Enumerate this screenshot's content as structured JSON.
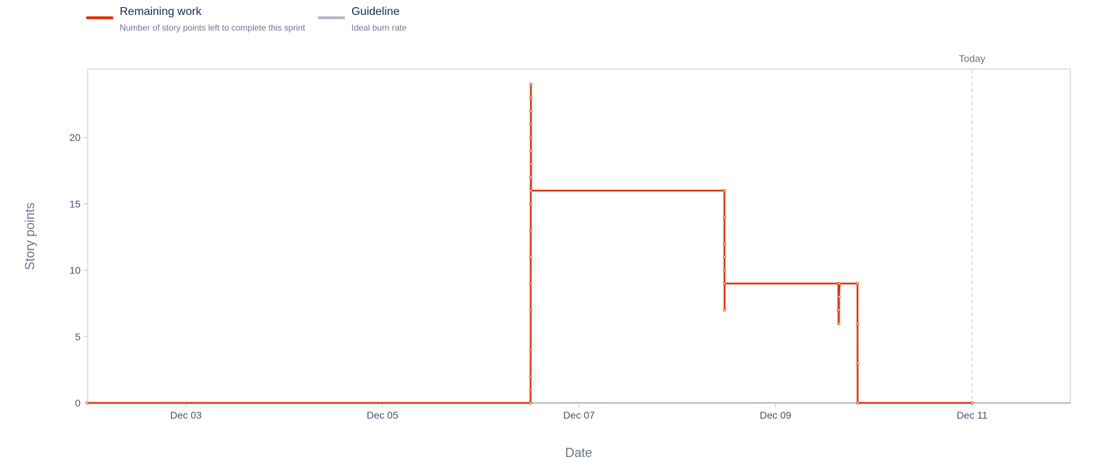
{
  "legend": [
    {
      "name": "Remaining work",
      "description": "Number of story points left to complete this sprint",
      "color": "#de350b"
    },
    {
      "name": "Guideline",
      "description": "Ideal burn rate",
      "color": "#b3bac5"
    }
  ],
  "chart_data": {
    "type": "line",
    "xlabel": "Date",
    "ylabel": "Story points",
    "x_ticks": [
      "Dec 03",
      "Dec 05",
      "Dec 07",
      "Dec 09",
      "Dec 11"
    ],
    "y_ticks": [
      0,
      5,
      10,
      15,
      20
    ],
    "xlim": [
      "2023-12-02T00:00",
      "2023-12-12T00:00"
    ],
    "ylim": [
      0,
      25
    ],
    "today": {
      "label": "Today",
      "date": "2023-12-11T00:00"
    },
    "grid": false,
    "legend_position": "top-left",
    "series": [
      {
        "name": "Remaining work",
        "color": "#de350b",
        "points": [
          {
            "x": "2023-12-02T00:00",
            "y": 0
          },
          {
            "x": "2023-12-06T12:10",
            "y": 0
          },
          {
            "x": "2023-12-06T12:10",
            "y": 1
          },
          {
            "x": "2023-12-06T12:10",
            "y": 2
          },
          {
            "x": "2023-12-06T12:12",
            "y": 4
          },
          {
            "x": "2023-12-06T12:12",
            "y": 7
          },
          {
            "x": "2023-12-06T12:12",
            "y": 9
          },
          {
            "x": "2023-12-06T12:12",
            "y": 11
          },
          {
            "x": "2023-12-06T12:13",
            "y": 13
          },
          {
            "x": "2023-12-06T12:13",
            "y": 15
          },
          {
            "x": "2023-12-06T12:14",
            "y": 17
          },
          {
            "x": "2023-12-06T12:14",
            "y": 20
          },
          {
            "x": "2023-12-06T12:14",
            "y": 21
          },
          {
            "x": "2023-12-06T12:15",
            "y": 22
          },
          {
            "x": "2023-12-06T12:15",
            "y": 23
          },
          {
            "x": "2023-12-06T12:15",
            "y": 24
          },
          {
            "x": "2023-12-06T12:16",
            "y": 19
          },
          {
            "x": "2023-12-06T12:17",
            "y": 18
          },
          {
            "x": "2023-12-06T12:18",
            "y": 16
          },
          {
            "x": "2023-12-08T11:30",
            "y": 16
          },
          {
            "x": "2023-12-08T11:31",
            "y": 14
          },
          {
            "x": "2023-12-08T11:31",
            "y": 12
          },
          {
            "x": "2023-12-08T11:32",
            "y": 11
          },
          {
            "x": "2023-12-08T11:32",
            "y": 10
          },
          {
            "x": "2023-12-08T11:33",
            "y": 7
          },
          {
            "x": "2023-12-08T11:34",
            "y": 9
          },
          {
            "x": "2023-12-09T15:20",
            "y": 9
          },
          {
            "x": "2023-12-09T15:22",
            "y": 7
          },
          {
            "x": "2023-12-09T15:24",
            "y": 6
          },
          {
            "x": "2023-12-09T15:26",
            "y": 7
          },
          {
            "x": "2023-12-09T15:28",
            "y": 6
          },
          {
            "x": "2023-12-09T15:30",
            "y": 8
          },
          {
            "x": "2023-12-09T15:40",
            "y": 9
          },
          {
            "x": "2023-12-09T20:00",
            "y": 9
          },
          {
            "x": "2023-12-09T20:01",
            "y": 6
          },
          {
            "x": "2023-12-09T20:02",
            "y": 3
          },
          {
            "x": "2023-12-09T20:03",
            "y": 0
          },
          {
            "x": "2023-12-11T00:00",
            "y": 0
          }
        ]
      },
      {
        "name": "Guideline",
        "color": "#b3bac5",
        "points": [
          {
            "x": "2023-12-02T00:00",
            "y": 0
          },
          {
            "x": "2023-12-12T00:00",
            "y": 0
          }
        ]
      }
    ]
  }
}
